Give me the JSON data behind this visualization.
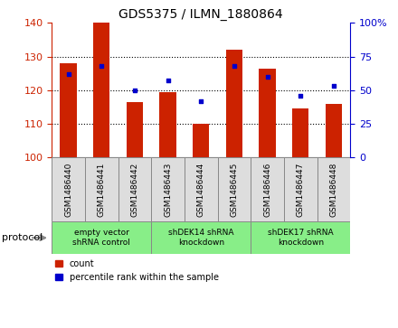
{
  "title": "GDS5375 / ILMN_1880864",
  "categories": [
    "GSM1486440",
    "GSM1486441",
    "GSM1486442",
    "GSM1486443",
    "GSM1486444",
    "GSM1486445",
    "GSM1486446",
    "GSM1486447",
    "GSM1486448"
  ],
  "bar_values": [
    128,
    140,
    116.5,
    119.5,
    110,
    132,
    126.5,
    114.5,
    116
  ],
  "percentile_values": [
    62,
    68,
    50,
    57,
    42,
    68,
    60,
    46,
    53
  ],
  "bar_color": "#cc2200",
  "percentile_color": "#0000cc",
  "ylim_left": [
    100,
    140
  ],
  "ylim_right": [
    0,
    100
  ],
  "yticks_left": [
    100,
    110,
    120,
    130,
    140
  ],
  "yticks_right": [
    0,
    25,
    50,
    75,
    100
  ],
  "yticklabels_right": [
    "0",
    "25",
    "50",
    "75",
    "100%"
  ],
  "protocol_labels": [
    "empty vector\nshRNA control",
    "shDEK14 shRNA\nknockdown",
    "shDEK17 shRNA\nknockdown"
  ],
  "protocol_groups": [
    3,
    3,
    3
  ],
  "legend_count_label": "count",
  "legend_percentile_label": "percentile rank within the sample",
  "background_color": "#ffffff",
  "tick_color_left": "#cc2200",
  "tick_color_right": "#0000cc",
  "bar_width": 0.5,
  "protocol_text": "protocol",
  "sample_box_color": "#dddddd",
  "protocol_box_color": "#88ee88"
}
